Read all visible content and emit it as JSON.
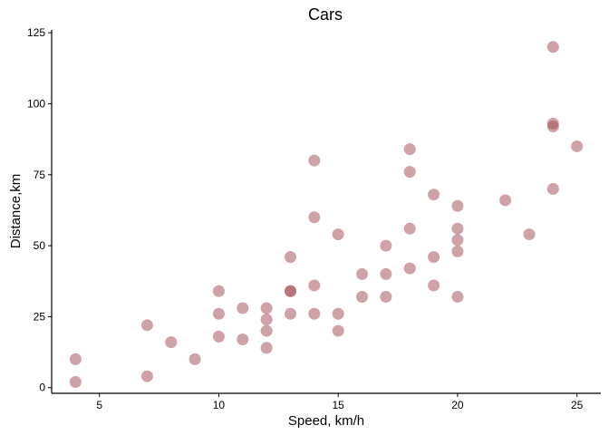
{
  "chart_data": {
    "type": "scatter",
    "title": "Cars",
    "xlabel": "Speed, km/h",
    "ylabel": "Distance,km",
    "xlim": [
      3,
      26
    ],
    "ylim": [
      -2,
      126
    ],
    "xticks": [
      5,
      10,
      15,
      20,
      25
    ],
    "yticks": [
      0,
      25,
      50,
      75,
      100,
      125
    ],
    "grid": false,
    "point_color": "#a04550",
    "series": [
      {
        "points": [
          [
            4,
            2
          ],
          [
            4,
            10
          ],
          [
            7,
            4
          ],
          [
            7,
            22
          ],
          [
            8,
            16
          ],
          [
            9,
            10
          ],
          [
            10,
            18
          ],
          [
            10,
            26
          ],
          [
            10,
            34
          ],
          [
            11,
            17
          ],
          [
            11,
            28
          ],
          [
            12,
            14
          ],
          [
            12,
            20
          ],
          [
            12,
            24
          ],
          [
            12,
            28
          ],
          [
            13,
            26
          ],
          [
            13,
            34
          ],
          [
            13,
            34
          ],
          [
            13,
            46
          ],
          [
            14,
            26
          ],
          [
            14,
            36
          ],
          [
            14,
            60
          ],
          [
            14,
            80
          ],
          [
            15,
            20
          ],
          [
            15,
            26
          ],
          [
            15,
            54
          ],
          [
            16,
            32
          ],
          [
            16,
            40
          ],
          [
            17,
            32
          ],
          [
            17,
            40
          ],
          [
            17,
            50
          ],
          [
            18,
            42
          ],
          [
            18,
            56
          ],
          [
            18,
            76
          ],
          [
            18,
            84
          ],
          [
            19,
            36
          ],
          [
            19,
            46
          ],
          [
            19,
            68
          ],
          [
            20,
            32
          ],
          [
            20,
            48
          ],
          [
            20,
            52
          ],
          [
            20,
            56
          ],
          [
            20,
            64
          ],
          [
            22,
            66
          ],
          [
            23,
            54
          ],
          [
            24,
            70
          ],
          [
            24,
            92
          ],
          [
            24,
            93
          ],
          [
            24,
            120
          ],
          [
            25,
            85
          ]
        ]
      }
    ]
  }
}
